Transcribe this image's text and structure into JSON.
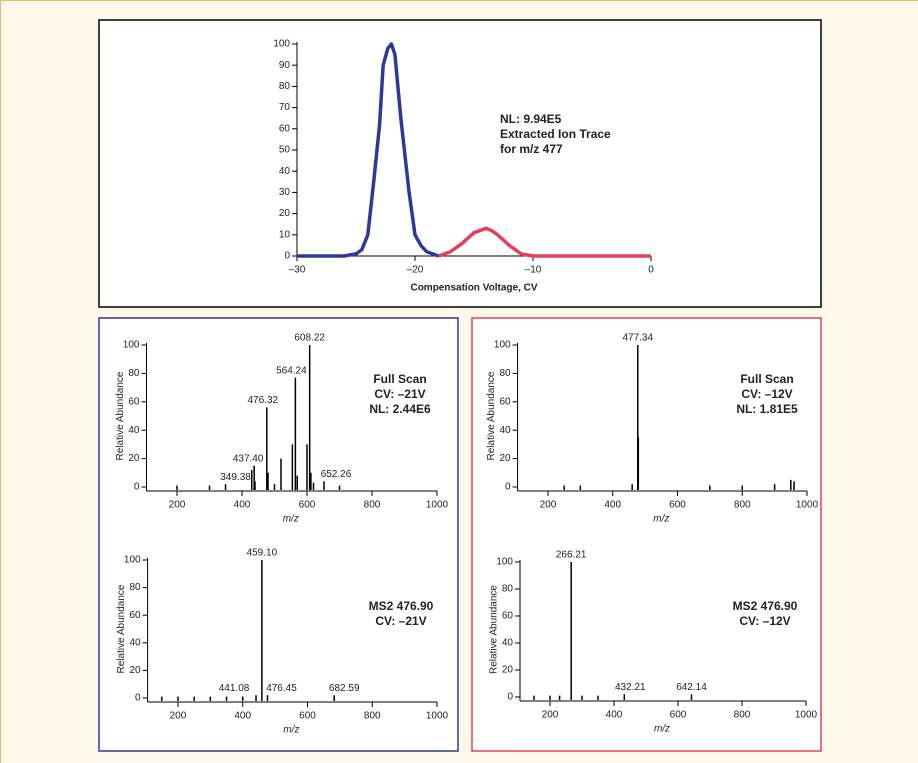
{
  "chart_data": [
    {
      "type": "line",
      "x_label": "Compensation Voltage, CV",
      "annotations": [
        "NL: 9.94E5",
        "Extracted Ion Trace",
        "for m/z 477"
      ],
      "annotation_color": "#000000",
      "xlim": [
        -30,
        0
      ],
      "ylim": [
        0,
        100
      ],
      "xticks": [
        {
          "value": -30,
          "label": "–30"
        },
        {
          "value": -20,
          "label": "–20"
        },
        {
          "value": -10,
          "label": "–10"
        },
        0
      ],
      "yticks": [
        0,
        10,
        20,
        30,
        40,
        50,
        60,
        70,
        80,
        90,
        100
      ],
      "series": [
        {
          "color": "#2b3a98",
          "x": [
            -30,
            -26,
            -25,
            -24.5,
            -24,
            -23.5,
            -23,
            -22.7,
            -22.3,
            -22,
            -21.7,
            -21.2,
            -20.8,
            -20.5,
            -20,
            -19.5,
            -19,
            -18
          ],
          "values": [
            0,
            0,
            1,
            3,
            10,
            35,
            62,
            90,
            98,
            100,
            95,
            65,
            45,
            30,
            10,
            5,
            2,
            0
          ]
        },
        {
          "color": "#e2405c",
          "x": [
            -18,
            -17,
            -16,
            -15,
            -14,
            -13.5,
            -13,
            -12,
            -11,
            -10,
            0
          ],
          "values": [
            0,
            2,
            6,
            11,
            13,
            12,
            10,
            5,
            1,
            0,
            0
          ]
        }
      ]
    },
    {
      "type": "stem",
      "x_label": "m/z",
      "y_label": "Relative Abundance",
      "color": "#000000",
      "annotations": [
        "Full Scan",
        "CV: –21V",
        "NL: 2.44E6"
      ],
      "annotation_color": "#2b3a98",
      "xlim": [
        100,
        1000
      ],
      "ylim": [
        0,
        100
      ],
      "xticks": [
        200,
        400,
        600,
        800,
        1000
      ],
      "yticks": [
        0,
        20,
        40,
        60,
        80,
        100
      ],
      "series": [
        {
          "x": [
            608.22,
            564.24,
            476.32,
            437.4,
            349.38,
            652.26
          ],
          "x_labels": [
            "608.22",
            "564.24",
            "476.32",
            "437.40",
            "349.38",
            "652.26"
          ],
          "values": [
            100,
            77,
            56,
            15,
            2,
            4
          ]
        },
        {
          "x": [
            200,
            300,
            430,
            440,
            480,
            500,
            520,
            555,
            570,
            600,
            612,
            620,
            700
          ],
          "values": [
            1,
            1,
            12,
            4,
            10,
            2,
            20,
            30,
            8,
            30,
            10,
            3,
            1
          ]
        }
      ]
    },
    {
      "type": "stem",
      "x_label": "m/z",
      "y_label": "Relative Abundance",
      "color": "#000000",
      "annotations": [
        "MS2 476.90",
        "CV: –21V"
      ],
      "annotation_color": "#2b3a98",
      "xlim": [
        100,
        1000
      ],
      "ylim": [
        0,
        100
      ],
      "xticks": [
        200,
        400,
        600,
        800,
        1000
      ],
      "yticks": [
        0,
        20,
        40,
        60,
        80,
        100
      ],
      "series": [
        {
          "x": [
            459.1,
            441.08,
            476.45,
            682.59
          ],
          "x_labels": [
            "459.10",
            "441.08",
            "476.45",
            "682.59"
          ],
          "values": [
            100,
            2,
            2,
            2
          ]
        },
        {
          "x": [
            150,
            200,
            250,
            300,
            350,
            400
          ],
          "values": [
            1,
            1,
            1,
            1,
            1,
            1
          ]
        }
      ]
    },
    {
      "type": "stem",
      "x_label": "m/z",
      "y_label": "Relative Abundance",
      "color": "#000000",
      "annotations": [
        "Full Scan",
        "CV: –12V",
        "NL: 1.81E5"
      ],
      "annotation_color": "#e2405c",
      "xlim": [
        100,
        1000
      ],
      "ylim": [
        0,
        100
      ],
      "xticks": [
        200,
        400,
        600,
        800,
        1000
      ],
      "yticks": [
        0,
        20,
        40,
        60,
        80,
        100
      ],
      "series": [
        {
          "x": [
            477.34
          ],
          "x_labels": [
            "477.34"
          ],
          "values": [
            100
          ]
        },
        {
          "x": [
            250,
            300,
            460,
            479,
            700,
            800,
            900,
            950,
            960
          ],
          "values": [
            1,
            1,
            2,
            35,
            1,
            1,
            2,
            5,
            4
          ]
        }
      ]
    },
    {
      "type": "stem",
      "x_label": "m/z",
      "y_label": "Relative Abundance",
      "color": "#000000",
      "annotations": [
        "MS2 476.90",
        "CV: –12V"
      ],
      "annotation_color": "#e2405c",
      "xlim": [
        100,
        1000
      ],
      "ylim": [
        0,
        100
      ],
      "xticks": [
        200,
        400,
        600,
        800,
        1000
      ],
      "yticks": [
        0,
        20,
        40,
        60,
        80,
        100
      ],
      "series": [
        {
          "x": [
            266.21,
            432.21,
            642.14
          ],
          "x_labels": [
            "266.21",
            "432.21",
            "642.14"
          ],
          "values": [
            100,
            2,
            2
          ]
        },
        {
          "x": [
            150,
            200,
            230,
            300,
            350
          ],
          "values": [
            1,
            1,
            1,
            1,
            1
          ]
        }
      ]
    }
  ]
}
